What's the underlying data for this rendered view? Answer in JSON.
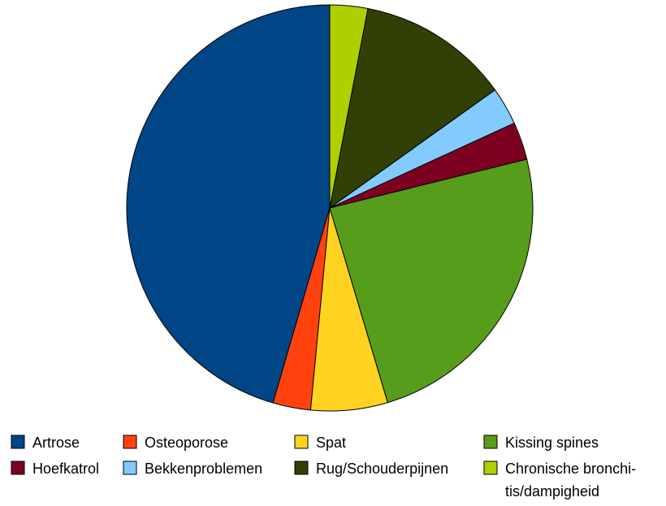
{
  "chart_data": {
    "type": "pie",
    "title": "",
    "legend_position": "bottom",
    "series": [
      {
        "name": "Artrose",
        "value": 46.9,
        "color": "#004586"
      },
      {
        "name": "Osteoporose",
        "value": 3.1,
        "color": "#ff420e"
      },
      {
        "name": "Spat",
        "value": 6.3,
        "color": "#ffd320"
      },
      {
        "name": "Kissing spines",
        "value": 25.0,
        "color": "#579d1c"
      },
      {
        "name": "Hoefkatrol",
        "value": 3.1,
        "color": "#7e0021"
      },
      {
        "name": "Bekkenproblemen",
        "value": 3.1,
        "color": "#83caff"
      },
      {
        "name": "Rug/Schouderpijnen",
        "value": 12.5,
        "color": "#314004"
      },
      {
        "name": "Chronische bronchitis/dampigheid",
        "value": 3.1,
        "color": "#aecf00"
      }
    ],
    "legend_labels": [
      [
        "Artrose"
      ],
      [
        "Osteoporose"
      ],
      [
        "Spat"
      ],
      [
        "Kissing spines"
      ],
      [
        "Hoefkatrol"
      ],
      [
        "Bekkenproblemen"
      ],
      [
        "Rug/Schouderpijnen"
      ],
      [
        "Chronische bronchi-",
        "tis/dampigheid"
      ]
    ]
  }
}
